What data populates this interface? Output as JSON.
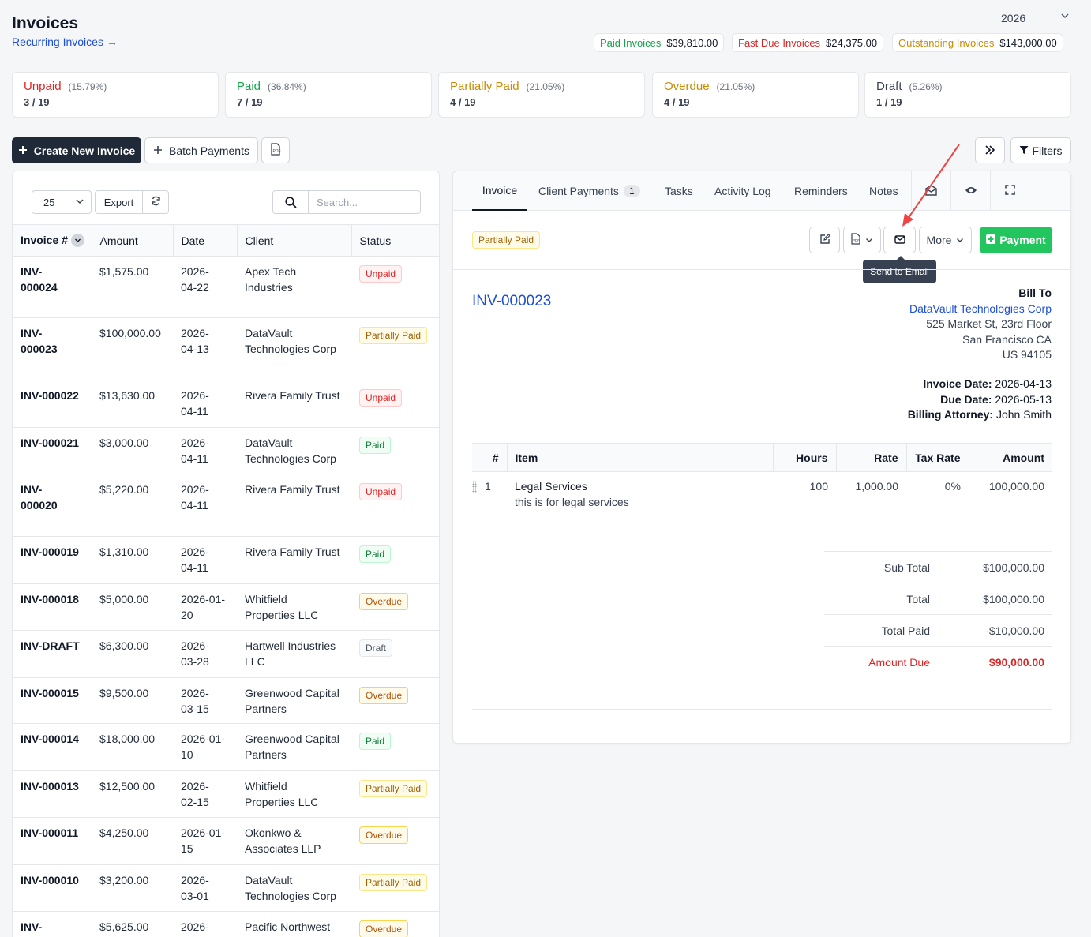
{
  "header": {
    "title": "Invoices",
    "recurring_link": "Recurring Invoices →",
    "year": "2026"
  },
  "summary": [
    {
      "label": "Paid Invoices",
      "amount": "$39,810.00",
      "color": "#16a34a"
    },
    {
      "label": "Fast Due Invoices",
      "amount": "$24,375.00",
      "color": "#dc2626"
    },
    {
      "label": "Outstanding Invoices",
      "amount": "$143,000.00",
      "color": "#ca8a04"
    }
  ],
  "stats": [
    {
      "name": "Unpaid",
      "pct": "(15.79%)",
      "count": "3 / 19",
      "color": "#dc2626"
    },
    {
      "name": "Paid",
      "pct": "(36.84%)",
      "count": "7 / 19",
      "color": "#16a34a"
    },
    {
      "name": "Partially Paid",
      "pct": "(21.05%)",
      "count": "4 / 19",
      "color": "#ca8a04"
    },
    {
      "name": "Overdue",
      "pct": "(21.05%)",
      "count": "4 / 19",
      "color": "#ca8a04"
    },
    {
      "name": "Draft",
      "pct": "(5.26%)",
      "count": "1 / 19",
      "color": "#374151"
    }
  ],
  "toolbar": {
    "create": "Create New Invoice",
    "batch": "Batch Payments",
    "filters": "Filters"
  },
  "list": {
    "page_size": "25",
    "export": "Export",
    "search_placeholder": "Search...",
    "columns": [
      "Invoice #",
      "Amount",
      "Date",
      "Client",
      "Status"
    ],
    "rows": [
      {
        "num": "INV-\n000024",
        "amount": "$1,575.00",
        "date": "2026-\n04-22",
        "client": "Apex Tech\nIndustries",
        "status": "Unpaid",
        "cls": "b-unpaid"
      },
      {
        "num": "INV-\n000023",
        "amount": "$100,000.00",
        "date": "2026-\n04-13",
        "client": "DataVault\nTechnologies Corp",
        "status": "Partially Paid",
        "cls": "b-partial"
      },
      {
        "num": "INV-000022",
        "amount": "$13,630.00",
        "date": "2026-\n04-11",
        "client": "Rivera Family Trust",
        "status": "Unpaid",
        "cls": "b-unpaid"
      },
      {
        "num": "INV-000021",
        "amount": "$3,000.00",
        "date": "2026-\n04-11",
        "client": "DataVault\nTechnologies Corp",
        "status": "Paid",
        "cls": "b-paid"
      },
      {
        "num": "INV-\n000020",
        "amount": "$5,220.00",
        "date": "2026-\n04-11",
        "client": "Rivera Family Trust",
        "status": "Unpaid",
        "cls": "b-unpaid"
      },
      {
        "num": "INV-000019",
        "amount": "$1,310.00",
        "date": "2026-\n04-11",
        "client": "Rivera Family Trust",
        "status": "Paid",
        "cls": "b-paid"
      },
      {
        "num": "INV-000018",
        "amount": "$5,000.00",
        "date": "2026-01-\n20",
        "client": "Whitfield\nProperties LLC",
        "status": "Overdue",
        "cls": "b-overdue"
      },
      {
        "num": "INV-DRAFT",
        "amount": "$6,300.00",
        "date": "2026-\n03-28",
        "client": "Hartwell Industries\nLLC",
        "status": "Draft",
        "cls": "b-draft"
      },
      {
        "num": "INV-000015",
        "amount": "$9,500.00",
        "date": "2026-\n03-15",
        "client": "Greenwood Capital\nPartners",
        "status": "Overdue",
        "cls": "b-overdue"
      },
      {
        "num": "INV-000014",
        "amount": "$18,000.00",
        "date": "2026-01-\n10",
        "client": "Greenwood Capital\nPartners",
        "status": "Paid",
        "cls": "b-paid"
      },
      {
        "num": "INV-000013",
        "amount": "$12,500.00",
        "date": "2026-\n02-15",
        "client": "Whitfield\nProperties LLC",
        "status": "Partially Paid",
        "cls": "b-partial"
      },
      {
        "num": "INV-000011",
        "amount": "$4,250.00",
        "date": "2026-01-\n15",
        "client": "Okonkwo &\nAssociates LLP",
        "status": "Overdue",
        "cls": "b-overdue"
      },
      {
        "num": "INV-000010",
        "amount": "$3,200.00",
        "date": "2026-\n03-01",
        "client": "DataVault\nTechnologies Corp",
        "status": "Partially Paid",
        "cls": "b-partial"
      },
      {
        "num": "INV-",
        "amount": "$5,625.00",
        "date": "2026-",
        "client": "Pacific Northwest",
        "status": "Overdue",
        "cls": "b-overdue"
      }
    ]
  },
  "detail": {
    "tabs": {
      "invoice": "Invoice",
      "payments": "Client Payments",
      "payments_count": "1",
      "tasks": "Tasks",
      "activity": "Activity Log",
      "reminders": "Reminders",
      "notes": "Notes"
    },
    "status": "Partially Paid",
    "more": "More",
    "payment": "Payment",
    "tooltip": "Send to Email",
    "number": "INV-000023",
    "bill_to": {
      "heading": "Bill To",
      "client": "DataVault Technologies Corp",
      "address1": "525 Market St, 23rd Floor",
      "address2": "San Francisco CA",
      "address3": "US 94105"
    },
    "meta": {
      "invoice_date_label": "Invoice Date:",
      "invoice_date": "2026-04-13",
      "due_date_label": "Due Date:",
      "due_date": "2026-05-13",
      "attorney_label": "Billing Attorney:",
      "attorney": "John Smith"
    },
    "items": {
      "columns": [
        "#",
        "Item",
        "Hours",
        "Rate",
        "Tax Rate",
        "Amount"
      ],
      "rows": [
        {
          "n": "1",
          "item": "Legal Services",
          "desc": "this is for legal services",
          "hours": "100",
          "rate": "1,000.00",
          "tax": "0%",
          "amount": "100,000.00"
        }
      ]
    },
    "totals": {
      "sub_total_label": "Sub Total",
      "sub_total": "$100,000.00",
      "total_label": "Total",
      "total": "$100,000.00",
      "paid_label": "Total Paid",
      "paid": "-$10,000.00",
      "due_label": "Amount Due",
      "due": "$90,000.00"
    }
  }
}
